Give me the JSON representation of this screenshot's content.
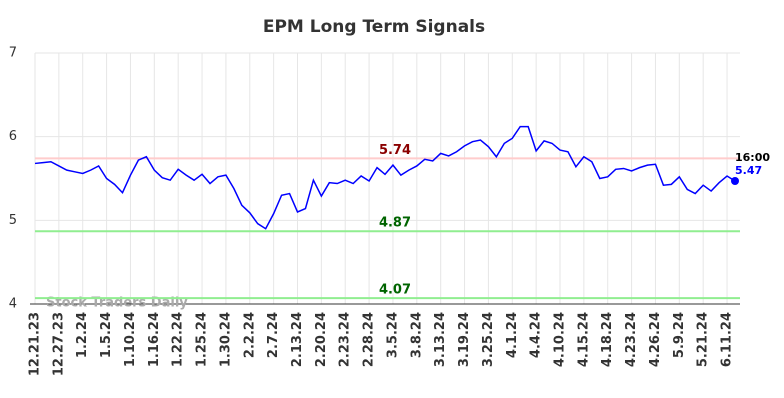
{
  "chart_data": {
    "type": "line",
    "title": "EPM Long Term Signals",
    "categories": [
      "12.21.23",
      null,
      null,
      "12.27.23",
      null,
      null,
      "1.2.24",
      null,
      null,
      "1.5.24",
      null,
      null,
      "1.10.24",
      null,
      null,
      "1.16.24",
      null,
      null,
      "1.22.24",
      null,
      null,
      "1.25.24",
      null,
      null,
      "1.30.24",
      null,
      null,
      "2.2.24",
      null,
      null,
      "2.7.24",
      null,
      null,
      "2.13.24",
      null,
      null,
      "2.20.24",
      null,
      null,
      "2.23.24",
      null,
      null,
      "2.28.24",
      null,
      null,
      "3.5.24",
      null,
      null,
      "3.8.24",
      null,
      null,
      "3.13.24",
      null,
      null,
      "3.19.24",
      null,
      null,
      "3.25.24",
      null,
      null,
      "4.1.24",
      null,
      null,
      "4.4.24",
      null,
      null,
      "4.10.24",
      null,
      null,
      "4.15.24",
      null,
      null,
      "4.18.24",
      null,
      null,
      "4.23.24",
      null,
      null,
      "4.26.24",
      null,
      null,
      "5.9.24",
      null,
      null,
      "5.21.24",
      null,
      null,
      "6.11.24",
      null
    ],
    "series": [
      {
        "color": "#0000ff",
        "values": [
          5.68,
          5.69,
          5.7,
          5.65,
          5.6,
          5.58,
          5.56,
          5.6,
          5.65,
          5.5,
          5.43,
          5.33,
          5.54,
          5.72,
          5.76,
          5.6,
          5.51,
          5.48,
          5.61,
          5.54,
          5.48,
          5.55,
          5.44,
          5.52,
          5.54,
          5.38,
          5.18,
          5.09,
          4.96,
          4.9,
          5.08,
          5.3,
          5.32,
          5.1,
          5.14,
          5.48,
          5.29,
          5.45,
          5.44,
          5.48,
          5.44,
          5.53,
          5.47,
          5.63,
          5.55,
          5.66,
          5.54,
          5.6,
          5.65,
          5.73,
          5.71,
          5.8,
          5.77,
          5.82,
          5.89,
          5.94,
          5.96,
          5.88,
          5.76,
          5.92,
          5.98,
          6.12,
          6.12,
          5.83,
          5.95,
          5.92,
          5.84,
          5.82,
          5.64,
          5.76,
          5.7,
          5.5,
          5.52,
          5.61,
          5.62,
          5.59,
          5.63,
          5.66,
          5.67,
          5.42,
          5.43,
          5.52,
          5.37,
          5.32,
          5.42,
          5.35,
          5.45,
          5.53,
          5.47
        ]
      }
    ],
    "ylim": [
      4,
      7
    ],
    "yticks": [
      4,
      5,
      6,
      7
    ],
    "grid": true,
    "hlines": [
      {
        "value": 5.74,
        "line_color": "#ffcccc",
        "label_color": "#8b0000"
      },
      {
        "value": 4.87,
        "line_color": "#90ee90",
        "label_color": "#006400"
      },
      {
        "value": 4.07,
        "line_color": "#90ee90",
        "label_color": "#006400"
      }
    ],
    "last_time": "16:00",
    "watermark": "Stock Traders Daily"
  }
}
